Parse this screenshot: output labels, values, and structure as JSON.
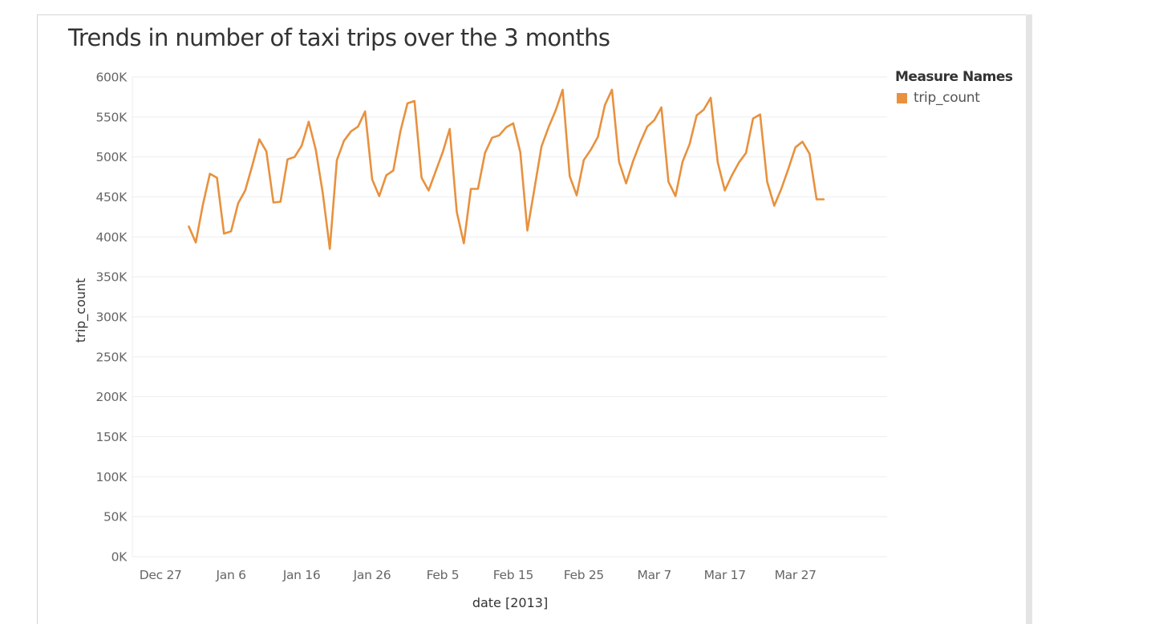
{
  "chart_data": {
    "type": "line",
    "title": "Trends in number of taxi trips over the 3 months",
    "xlabel": "date [2013]",
    "ylabel": "trip_count",
    "ylim": [
      0,
      600000
    ],
    "yticks": [
      {
        "value": 0,
        "label": "0K"
      },
      {
        "value": 50000,
        "label": "50K"
      },
      {
        "value": 100000,
        "label": "100K"
      },
      {
        "value": 150000,
        "label": "150K"
      },
      {
        "value": 200000,
        "label": "200K"
      },
      {
        "value": 250000,
        "label": "250K"
      },
      {
        "value": 300000,
        "label": "300K"
      },
      {
        "value": 350000,
        "label": "350K"
      },
      {
        "value": 400000,
        "label": "400K"
      },
      {
        "value": 450000,
        "label": "450K"
      },
      {
        "value": 500000,
        "label": "500K"
      },
      {
        "value": 550000,
        "label": "550K"
      },
      {
        "value": 600000,
        "label": "600K"
      }
    ],
    "xlim": [
      "2012-12-23",
      "2013-04-09"
    ],
    "xticks": [
      {
        "date": "2012-12-27",
        "label": "Dec 27"
      },
      {
        "date": "2013-01-06",
        "label": "Jan 6"
      },
      {
        "date": "2013-01-16",
        "label": "Jan 16"
      },
      {
        "date": "2013-01-26",
        "label": "Jan 26"
      },
      {
        "date": "2013-02-05",
        "label": "Feb 5"
      },
      {
        "date": "2013-02-15",
        "label": "Feb 15"
      },
      {
        "date": "2013-02-25",
        "label": "Feb 25"
      },
      {
        "date": "2013-03-07",
        "label": "Mar 7"
      },
      {
        "date": "2013-03-17",
        "label": "Mar 17"
      },
      {
        "date": "2013-03-27",
        "label": "Mar 27"
      }
    ],
    "grid": true,
    "legend": {
      "title": "Measure Names",
      "placement": "right",
      "entries": [
        {
          "name": "trip_count",
          "color": "#e8913e"
        }
      ]
    },
    "series": [
      {
        "name": "trip_count",
        "color": "#e8913e",
        "x": [
          "2012-12-31",
          "2013-01-01",
          "2013-01-02",
          "2013-01-03",
          "2013-01-04",
          "2013-01-05",
          "2013-01-06",
          "2013-01-07",
          "2013-01-08",
          "2013-01-09",
          "2013-01-10",
          "2013-01-11",
          "2013-01-12",
          "2013-01-13",
          "2013-01-14",
          "2013-01-15",
          "2013-01-16",
          "2013-01-17",
          "2013-01-18",
          "2013-01-19",
          "2013-01-20",
          "2013-01-21",
          "2013-01-22",
          "2013-01-23",
          "2013-01-24",
          "2013-01-25",
          "2013-01-26",
          "2013-01-27",
          "2013-01-28",
          "2013-01-29",
          "2013-01-30",
          "2013-01-31",
          "2013-02-01",
          "2013-02-02",
          "2013-02-03",
          "2013-02-04",
          "2013-02-05",
          "2013-02-06",
          "2013-02-07",
          "2013-02-08",
          "2013-02-09",
          "2013-02-10",
          "2013-02-11",
          "2013-02-12",
          "2013-02-13",
          "2013-02-14",
          "2013-02-15",
          "2013-02-16",
          "2013-02-17",
          "2013-02-18",
          "2013-02-19",
          "2013-02-20",
          "2013-02-21",
          "2013-02-22",
          "2013-02-23",
          "2013-02-24",
          "2013-02-25",
          "2013-02-26",
          "2013-02-27",
          "2013-02-28",
          "2013-03-01",
          "2013-03-02",
          "2013-03-03",
          "2013-03-04",
          "2013-03-05",
          "2013-03-06",
          "2013-03-07",
          "2013-03-08",
          "2013-03-09",
          "2013-03-10",
          "2013-03-11",
          "2013-03-12",
          "2013-03-13",
          "2013-03-14",
          "2013-03-15",
          "2013-03-16",
          "2013-03-17",
          "2013-03-18",
          "2013-03-19",
          "2013-03-20",
          "2013-03-21",
          "2013-03-22",
          "2013-03-23",
          "2013-03-24",
          "2013-03-25",
          "2013-03-26",
          "2013-03-27",
          "2013-03-28",
          "2013-03-29",
          "2013-03-30",
          "2013-03-31"
        ],
        "values": [
          413000,
          393000,
          440000,
          479000,
          474000,
          404000,
          407000,
          442000,
          458000,
          489000,
          522000,
          507000,
          443000,
          444000,
          497000,
          500000,
          514000,
          544000,
          509000,
          455000,
          385000,
          496000,
          520000,
          532000,
          538000,
          557000,
          472000,
          451000,
          477000,
          483000,
          532000,
          567000,
          570000,
          474000,
          458000,
          482000,
          506000,
          535000,
          431000,
          392000,
          460000,
          460000,
          505000,
          524000,
          527000,
          537000,
          542000,
          506000,
          408000,
          460000,
          513000,
          537000,
          558000,
          584000,
          476000,
          452000,
          496000,
          509000,
          525000,
          565000,
          584000,
          494000,
          467000,
          495000,
          518000,
          538000,
          546000,
          562000,
          469000,
          451000,
          494000,
          516000,
          552000,
          559000,
          574000,
          493000,
          458000,
          477000,
          493000,
          505000,
          548000,
          553000,
          469000,
          439000,
          460000,
          485000,
          512000,
          519000,
          504000,
          447000,
          447000
        ]
      }
    ]
  }
}
